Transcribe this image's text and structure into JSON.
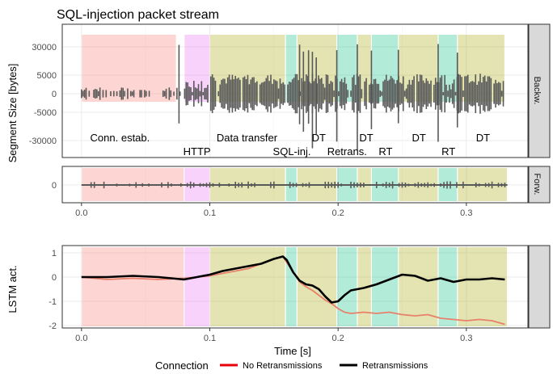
{
  "chart_data": {
    "type": "line",
    "title": "SQL-injection packet stream",
    "xlabel": "Time [s]",
    "x_ticks": [
      "0.0",
      "0.1",
      "0.2",
      "0.3"
    ],
    "x_tick_values": [
      0.0,
      0.1,
      0.2,
      0.3
    ],
    "xlim": [
      -0.015,
      0.348
    ],
    "phase_colors": {
      "conn": "#f8766d",
      "http": "#e76bf3",
      "data": "#a3a500",
      "sqlinj": "#00bf7d",
      "retrans": "#00bf7d",
      "rt": "#00bf7d"
    },
    "phases_top": [
      {
        "start": 0.0,
        "end": 0.074,
        "kind": "conn"
      },
      {
        "start": 0.08,
        "end": 0.1,
        "kind": "http"
      },
      {
        "start": 0.1,
        "end": 0.159,
        "kind": "data"
      },
      {
        "start": 0.159,
        "end": 0.168,
        "kind": "sqlinj"
      },
      {
        "start": 0.168,
        "end": 0.199,
        "kind": "data"
      },
      {
        "start": 0.199,
        "end": 0.215,
        "kind": "retrans"
      },
      {
        "start": 0.215,
        "end": 0.226,
        "kind": "data"
      },
      {
        "start": 0.226,
        "end": 0.247,
        "kind": "rt"
      },
      {
        "start": 0.247,
        "end": 0.278,
        "kind": "data"
      },
      {
        "start": 0.278,
        "end": 0.293,
        "kind": "rt"
      },
      {
        "start": 0.293,
        "end": 0.33,
        "kind": "data"
      }
    ],
    "phases_lower": [
      {
        "start": 0.0,
        "end": 0.08,
        "kind": "conn"
      },
      {
        "start": 0.08,
        "end": 0.1,
        "kind": "http"
      },
      {
        "start": 0.1,
        "end": 0.159,
        "kind": "data"
      },
      {
        "start": 0.159,
        "end": 0.168,
        "kind": "sqlinj"
      },
      {
        "start": 0.168,
        "end": 0.199,
        "kind": "data"
      },
      {
        "start": 0.199,
        "end": 0.215,
        "kind": "retrans"
      },
      {
        "start": 0.215,
        "end": 0.226,
        "kind": "data"
      },
      {
        "start": 0.226,
        "end": 0.247,
        "kind": "rt"
      },
      {
        "start": 0.247,
        "end": 0.278,
        "kind": "data"
      },
      {
        "start": 0.278,
        "end": 0.293,
        "kind": "rt"
      },
      {
        "start": 0.293,
        "end": 0.332,
        "kind": "data"
      }
    ],
    "phase_labels": [
      {
        "text": "Conn. estab.",
        "x": 0.03,
        "row": "upper"
      },
      {
        "text": "HTTP",
        "x": 0.09,
        "row": "lower"
      },
      {
        "text": "Data transfer",
        "x": 0.129,
        "row": "upper"
      },
      {
        "text": "SQL-inj.",
        "x": 0.164,
        "row": "lower"
      },
      {
        "text": "DT",
        "x": 0.185,
        "row": "upper"
      },
      {
        "text": "Retrans.",
        "x": 0.207,
        "row": "lower"
      },
      {
        "text": "DT",
        "x": 0.222,
        "row": "upper"
      },
      {
        "text": "RT",
        "x": 0.237,
        "row": "lower"
      },
      {
        "text": "DT",
        "x": 0.263,
        "row": "upper"
      },
      {
        "text": "RT",
        "x": 0.286,
        "row": "lower"
      },
      {
        "text": "DT",
        "x": 0.313,
        "row": "upper"
      }
    ],
    "panels": [
      {
        "strip": "Backw.",
        "ylabel": "Segment Size [bytes]",
        "y_ticks": [
          "30000",
          "5000",
          "0",
          "-5000",
          "-30000"
        ],
        "segment_range": [
          0.0,
          0.33
        ],
        "spike_times": [
          0.076,
          0.17,
          0.173,
          0.177,
          0.18,
          0.183,
          0.199,
          0.215,
          0.226,
          0.247,
          0.278,
          0.293
        ],
        "line_color": "#595959"
      },
      {
        "strip": "Forw.",
        "ylabel": "",
        "y_ticks": [
          "0"
        ],
        "segment_range": [
          0.0,
          0.332
        ],
        "line_color": "#595959"
      },
      {
        "strip": "",
        "ylabel": "LSTM act.",
        "y_ticks": [
          "1",
          "0",
          "-1",
          "-2"
        ],
        "ylim": [
          -2.1,
          1.3
        ]
      }
    ],
    "series": [
      {
        "name": "No Retransmissions",
        "color": "#e8806b",
        "x": [
          0.0,
          0.02,
          0.04,
          0.06,
          0.08,
          0.09,
          0.1,
          0.11,
          0.12,
          0.13,
          0.14,
          0.15,
          0.157,
          0.16,
          0.165,
          0.17,
          0.175,
          0.18,
          0.185,
          0.19,
          0.195,
          0.2,
          0.205,
          0.21,
          0.22,
          0.23,
          0.24,
          0.25,
          0.26,
          0.27,
          0.28,
          0.29,
          0.3,
          0.31,
          0.32,
          0.33
        ],
        "values": [
          0.0,
          -0.1,
          -0.05,
          -0.1,
          -0.05,
          0.0,
          0.05,
          0.15,
          0.25,
          0.35,
          0.55,
          0.75,
          0.85,
          0.6,
          0.2,
          -0.2,
          -0.4,
          -0.55,
          -0.75,
          -0.95,
          -1.1,
          -1.3,
          -1.45,
          -1.5,
          -1.45,
          -1.5,
          -1.45,
          -1.55,
          -1.6,
          -1.55,
          -1.7,
          -1.75,
          -1.8,
          -1.75,
          -1.8,
          -1.95
        ]
      },
      {
        "name": "Retransmissions",
        "color": "#000000",
        "x": [
          0.0,
          0.02,
          0.04,
          0.06,
          0.08,
          0.09,
          0.1,
          0.11,
          0.12,
          0.13,
          0.14,
          0.15,
          0.157,
          0.16,
          0.165,
          0.17,
          0.175,
          0.18,
          0.185,
          0.19,
          0.195,
          0.2,
          0.205,
          0.21,
          0.22,
          0.23,
          0.24,
          0.25,
          0.26,
          0.27,
          0.28,
          0.29,
          0.3,
          0.31,
          0.32,
          0.33
        ],
        "values": [
          0.0,
          0.0,
          0.05,
          0.0,
          -0.1,
          0.0,
          0.1,
          0.25,
          0.35,
          0.45,
          0.55,
          0.75,
          0.85,
          0.7,
          0.2,
          -0.15,
          -0.3,
          -0.35,
          -0.5,
          -0.8,
          -1.05,
          -1.0,
          -0.75,
          -0.55,
          -0.45,
          -0.3,
          -0.1,
          0.1,
          0.05,
          -0.15,
          -0.05,
          -0.2,
          -0.1,
          -0.1,
          -0.05,
          -0.1
        ]
      }
    ],
    "legend": {
      "title": "Connection",
      "position": "bottom"
    }
  }
}
